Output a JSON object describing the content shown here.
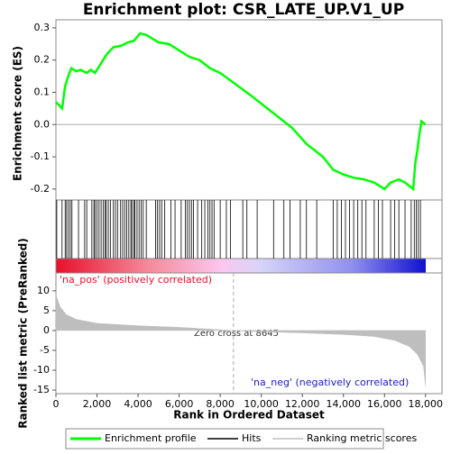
{
  "chart_data": [
    {
      "type": "line",
      "title": "Enrichment plot: CSR_LATE_UP.V1_UP",
      "y_label": "Enrichment score (ES)",
      "xlim": [
        0,
        18800
      ],
      "ylim": [
        -0.234,
        0.325
      ],
      "yticks": [
        -0.2,
        -0.1,
        {
          "value": 0,
          "label": "0.0"
        },
        0.1,
        0.2,
        0.3
      ],
      "series": [
        {
          "name": "Enrichment profile",
          "color": "#00ff00",
          "x": [
            0,
            300,
            450,
            600,
            750,
            1000,
            1200,
            1500,
            1700,
            1900,
            2100,
            2300,
            2500,
            2800,
            3200,
            3500,
            3800,
            4100,
            4400,
            5000,
            5500,
            6000,
            6500,
            7000,
            7500,
            8000,
            8645,
            9500,
            10500,
            11500,
            12200,
            13000,
            13500,
            14000,
            14500,
            15000,
            15500,
            16000,
            16300,
            16700,
            17000,
            17400,
            17500,
            17600,
            17700,
            17800,
            18000
          ],
          "values": [
            0.07,
            0.05,
            0.12,
            0.15,
            0.175,
            0.165,
            0.17,
            0.16,
            0.17,
            0.16,
            0.18,
            0.2,
            0.22,
            0.24,
            0.245,
            0.255,
            0.26,
            0.283,
            0.278,
            0.255,
            0.25,
            0.23,
            0.21,
            0.2,
            0.175,
            0.16,
            0.13,
            0.09,
            0.04,
            -0.01,
            -0.06,
            -0.1,
            -0.14,
            -0.155,
            -0.165,
            -0.17,
            -0.18,
            -0.2,
            -0.18,
            -0.17,
            -0.18,
            -0.2,
            -0.12,
            -0.08,
            -0.03,
            0.01,
            0.0
          ]
        }
      ]
    },
    {
      "type": "rug",
      "xlim": [
        0,
        18800
      ],
      "series": [
        {
          "name": "Hits",
          "color": "#000000",
          "x": [
            40,
            300,
            450,
            520,
            610,
            700,
            780,
            1100,
            1400,
            1500,
            1750,
            1850,
            1900,
            2000,
            2100,
            2200,
            2300,
            2400,
            2450,
            2550,
            2650,
            2800,
            2900,
            3000,
            3150,
            3250,
            3350,
            3450,
            3550,
            3650,
            3700,
            3800,
            3850,
            3950,
            4050,
            4150,
            4250,
            4400,
            4850,
            4950,
            5050,
            5150,
            5300,
            5600,
            5800,
            6100,
            6300,
            6400,
            6500,
            6600,
            6700,
            6900,
            7100,
            7250,
            7400,
            7500,
            7600,
            7700,
            8000,
            8300,
            8500,
            9100,
            9300,
            9800,
            10600,
            11100,
            11400,
            11900,
            12200,
            12700,
            13500,
            13700,
            13900,
            14100,
            14300,
            14500,
            14700,
            14900,
            15100,
            15500,
            15700,
            15900,
            16300,
            16500,
            16700,
            17000,
            17300,
            17450,
            17550,
            17650,
            17750
          ]
        }
      ]
    },
    {
      "type": "area",
      "y_label": "Ranked list metric (PreRanked)",
      "x_label": "Rank in Ordered Dataset",
      "xlim": [
        0,
        18800
      ],
      "ylim": [
        -15.9,
        14.5
      ],
      "yticks": [
        -15,
        -10,
        -5,
        0,
        5,
        10
      ],
      "xticks": [
        0,
        {
          "value": 2000,
          "label": "2,000"
        },
        {
          "value": 4000,
          "label": "4,000"
        },
        {
          "value": 6000,
          "label": "6,000"
        },
        {
          "value": 8000,
          "label": "8,000"
        },
        {
          "value": 10000,
          "label": "10,000"
        },
        {
          "value": 12000,
          "label": "12,000"
        },
        {
          "value": 14000,
          "label": "14,000"
        },
        {
          "value": 16000,
          "label": "16,000"
        },
        {
          "value": 18000,
          "label": "18,000"
        }
      ],
      "zero_cross": 8645,
      "annotations": [
        "'na_pos' (positively correlated)",
        "Zero cross at 8645",
        "'na_neg' (negatively correlated)"
      ],
      "series": [
        {
          "name": "Ranking metric scores",
          "color": "#bebebe",
          "x": [
            0,
            200,
            500,
            1000,
            2000,
            4000,
            6000,
            8645,
            10000,
            12000,
            14000,
            15500,
            16500,
            17200,
            17600,
            17900,
            18000
          ],
          "values": [
            9,
            6,
            4,
            2.8,
            1.8,
            1.2,
            0.8,
            0,
            -0.3,
            -0.6,
            -1.0,
            -1.5,
            -2.5,
            -4,
            -6,
            -9,
            -14
          ]
        }
      ]
    }
  ]
}
